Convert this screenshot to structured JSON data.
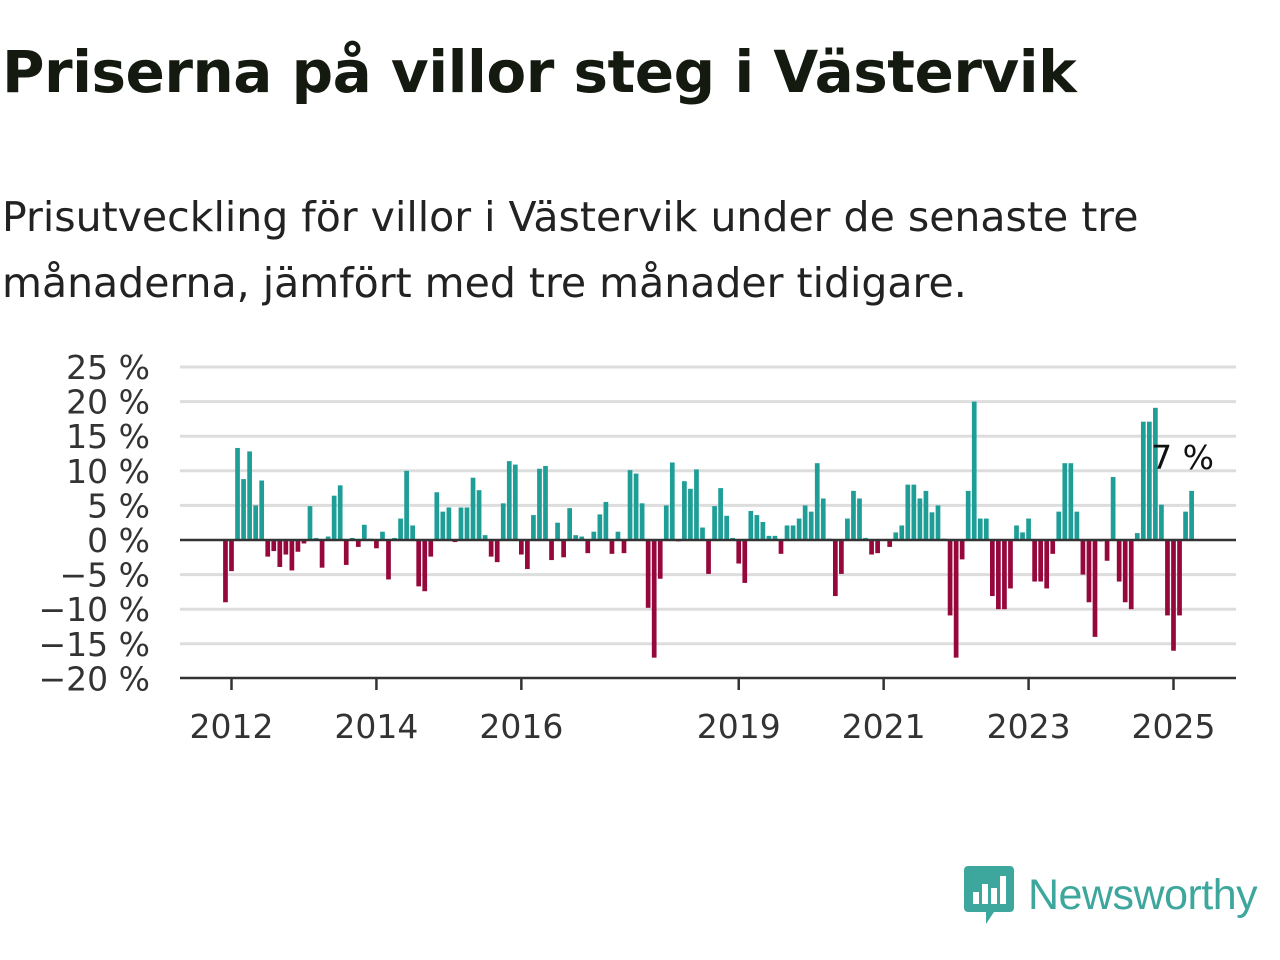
{
  "header": {
    "title": "Priserna på villor steg i Västervik",
    "subtitle": "Prisutveckling för villor i Västervik under de senaste tre månaderna, jämfört med tre månader tidigare."
  },
  "brand": {
    "name": "Newsworthy",
    "logo_icon": "bar-chart-speech-bubble-icon",
    "color": "#3ea79d"
  },
  "chart_data": {
    "type": "bar",
    "xlabel": "",
    "ylabel": "",
    "ylim": [
      -20,
      25
    ],
    "yticks": [
      25,
      20,
      15,
      10,
      5,
      0,
      -5,
      -10,
      -15,
      -20
    ],
    "ytick_labels": [
      "25 %",
      "20 %",
      "15 %",
      "10 %",
      "5 %",
      "0 %",
      "−5 %",
      "−10 %",
      "−15 %",
      "−20 %"
    ],
    "xticks": [
      "2012",
      "2014",
      "2016",
      "2019",
      "2021",
      "2023",
      "2025"
    ],
    "xtick_dates": [
      "2012-01",
      "2014-01",
      "2016-01",
      "2019-01",
      "2021-01",
      "2023-01",
      "2025-01"
    ],
    "positive_color": "#1f9e97",
    "negative_color": "#96083c",
    "grid": true,
    "start": "2011-12",
    "values": [
      -9,
      -4.5,
      13.3,
      8.8,
      12.8,
      5,
      8.6,
      -2.4,
      -1.6,
      -3.9,
      -2.1,
      -4.4,
      -1.7,
      -0.5,
      4.9,
      0.3,
      -4,
      0.5,
      6.4,
      7.9,
      -3.6,
      0.3,
      -1,
      2.2,
      0.2,
      -1.2,
      1.2,
      -5.7,
      0.3,
      3.1,
      10,
      2.1,
      -6.7,
      -7.4,
      -2.4,
      6.9,
      4.1,
      4.7,
      -0.3,
      4.7,
      4.7,
      9,
      7.2,
      0.7,
      -2.4,
      -3.2,
      5.3,
      11.4,
      10.9,
      -2.1,
      -4.2,
      3.6,
      10.3,
      10.7,
      -2.9,
      2.5,
      -2.5,
      4.6,
      0.7,
      0.5,
      -1.9,
      1.2,
      3.7,
      5.5,
      -2,
      1.2,
      -1.9,
      10.1,
      9.6,
      5.3,
      -9.8,
      -17,
      -5.6,
      5,
      11.2,
      -0.2,
      8.5,
      7.4,
      10.2,
      1.8,
      -4.9,
      4.9,
      7.5,
      3.5,
      0.3,
      -3.4,
      -6.2,
      4.2,
      3.6,
      2.6,
      0.6,
      0.6,
      -2,
      2.1,
      2.1,
      3.1,
      5,
      4.1,
      11.1,
      6,
      0.2,
      -8.1,
      -4.9,
      3.1,
      7.1,
      6,
      0.3,
      -2.1,
      -1.9,
      -0.1,
      -1,
      1.1,
      2.1,
      8,
      8,
      6,
      7.1,
      4,
      5,
      0.2,
      -10.9,
      -17,
      -2.8,
      7.1,
      20,
      3.1,
      3.1,
      -8.1,
      -10,
      -10,
      -7,
      2.1,
      1.1,
      3.1,
      -6,
      -6,
      -7,
      -2,
      4.1,
      11.1,
      11.1,
      4.1,
      -5,
      -9,
      -14,
      -0.2,
      -3,
      9.1,
      -6,
      -9,
      -10,
      1,
      17.1,
      17.1,
      19.1,
      5.1,
      -10.9,
      -16,
      -10.9,
      4.1,
      7.1
    ],
    "annotation": {
      "text": "7 %",
      "series_index": "last"
    }
  }
}
